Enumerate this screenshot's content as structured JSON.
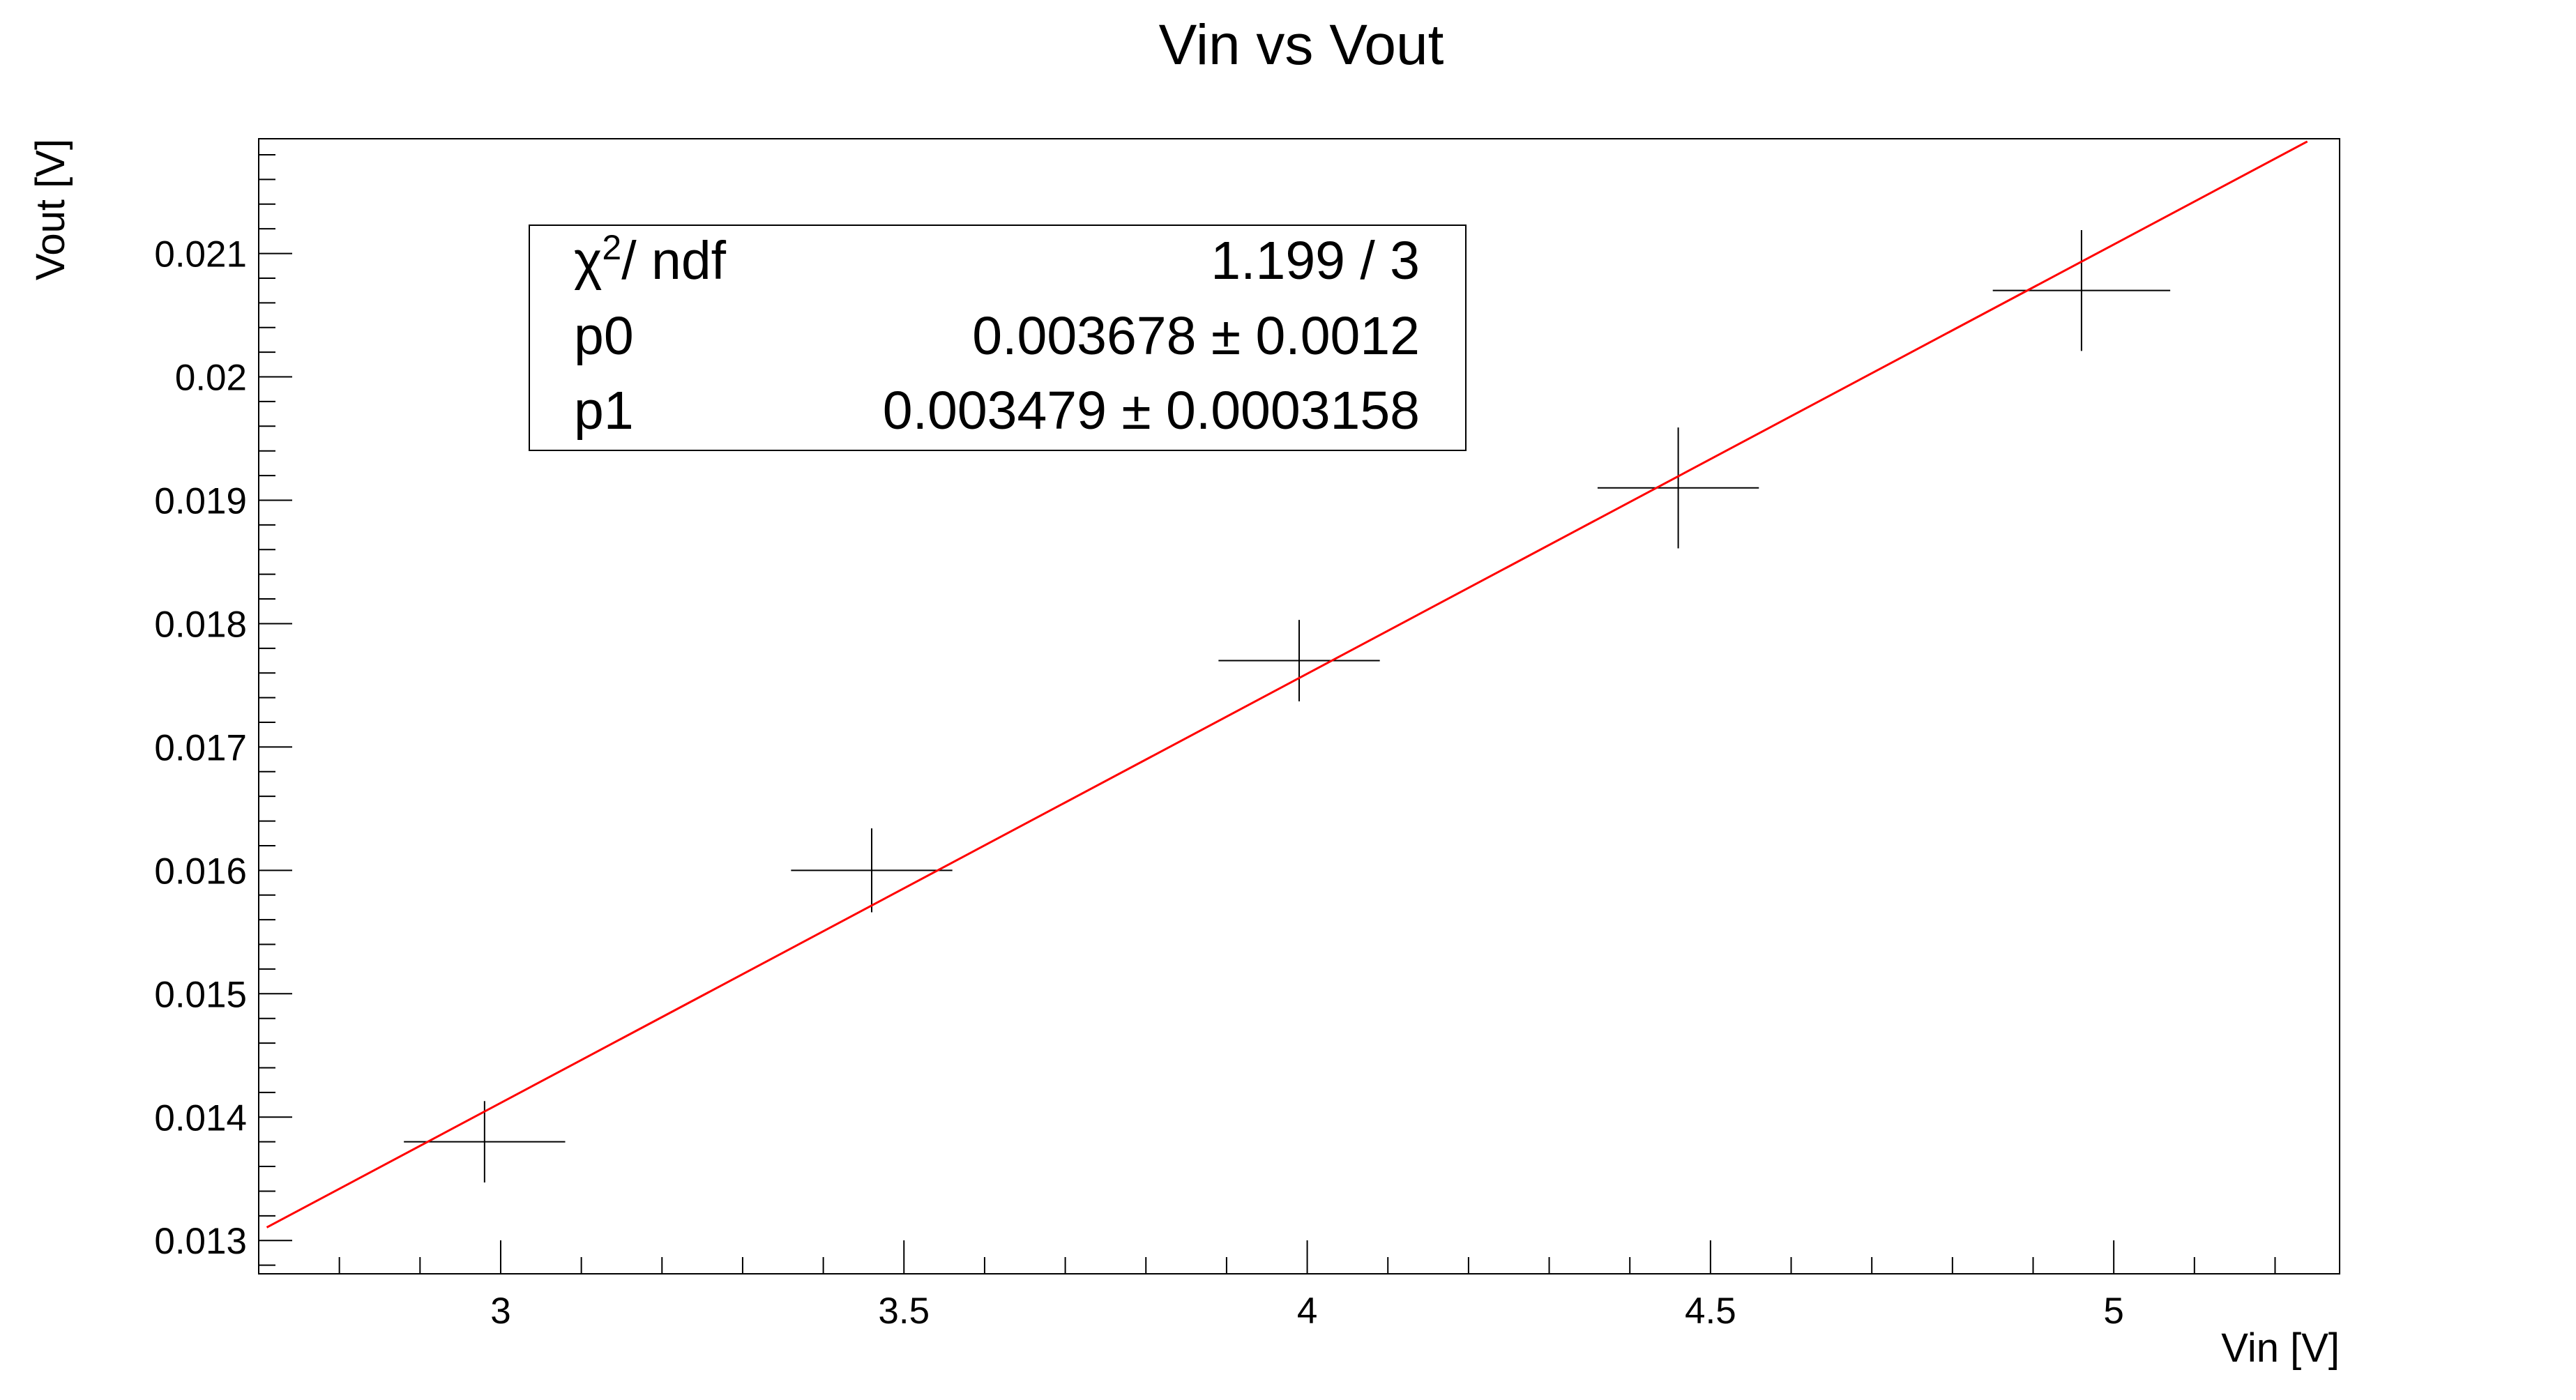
{
  "chart_data": {
    "type": "scatter",
    "title": "Vin vs Vout",
    "xlabel": "Vin [V]",
    "ylabel": "Vout [V]",
    "xlim": [
      2.7,
      5.28
    ],
    "ylim": [
      0.01273,
      0.02193
    ],
    "xticks": [
      "3",
      "3.5",
      "4",
      "4.5",
      "5"
    ],
    "yticks": [
      "0.013",
      "0.014",
      "0.015",
      "0.016",
      "0.017",
      "0.018",
      "0.019",
      "0.02",
      "0.021"
    ],
    "series": [
      {
        "points": [
          {
            "x": 2.98,
            "y": 0.0138,
            "xerr": 0.1,
            "yerr": 0.00033
          },
          {
            "x": 3.46,
            "y": 0.016,
            "xerr": 0.1,
            "yerr": 0.00034
          },
          {
            "x": 3.99,
            "y": 0.0177,
            "xerr": 0.1,
            "yerr": 0.00033
          },
          {
            "x": 4.46,
            "y": 0.0191,
            "xerr": 0.1,
            "yerr": 0.00049
          },
          {
            "x": 4.96,
            "y": 0.0207,
            "xerr": 0.11,
            "yerr": 0.00049
          }
        ],
        "color": "#000000"
      }
    ],
    "fit": {
      "p0": 0.003678,
      "p1": 0.003479,
      "x_range": [
        2.71,
        5.24
      ],
      "color": "#ff0000"
    },
    "stats": {
      "chi2_label": "/ ndf",
      "chi2_value": "1.199 / 3",
      "p0_label": "p0",
      "p0_value": "0.003678 ± 0.0012",
      "p1_label": "p1",
      "p1_value": "0.003479 ± 0.0003158"
    },
    "grid": false
  }
}
